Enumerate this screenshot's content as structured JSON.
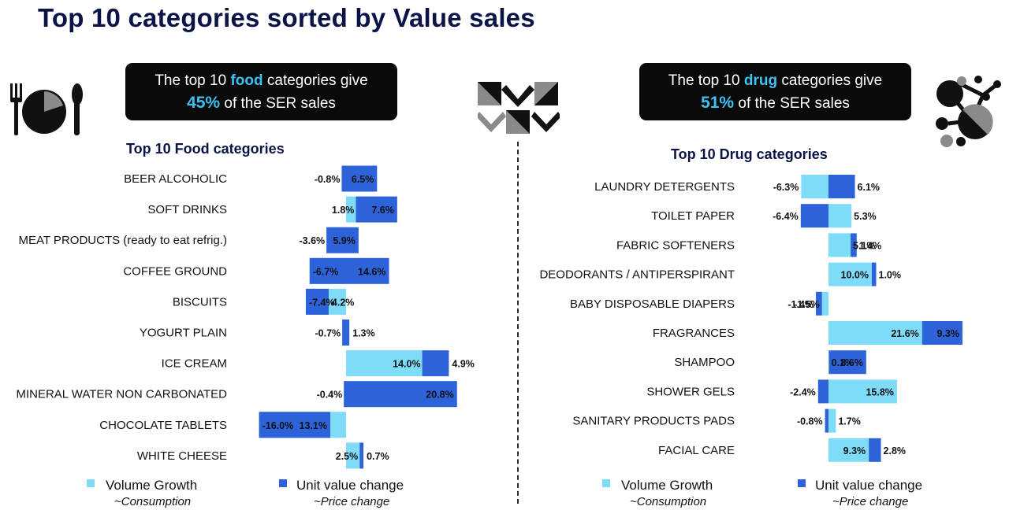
{
  "page": {
    "title": "Top 10 categories sorted by Value sales"
  },
  "callouts": {
    "food": {
      "prefix": "The top 10 ",
      "highlight": "food",
      "suffix": " categories give",
      "pct": "45%",
      "tail": " of the SER sales"
    },
    "drug": {
      "prefix": "The top 10 ",
      "highlight": "drug",
      "suffix": " categories give",
      "pct": "51%",
      "tail": " of the SER sales"
    }
  },
  "colors": {
    "volume": "#7fdcf8",
    "unit_value": "#2e62d9",
    "highlight_text": "#3ec1f2",
    "title": "#0b1447"
  },
  "icons": {
    "food": "fork-plate-knife-icon",
    "logo": "chevron-squares-logo-icon",
    "drug": "molecule-icon"
  },
  "legend": {
    "volume": {
      "label": "Volume Growth",
      "sub": "~Consumption"
    },
    "unit_value": {
      "label": "Unit value change",
      "sub": "~Price change"
    }
  },
  "chart_data": [
    {
      "type": "bar",
      "orientation": "horizontal",
      "title": "Top 10 Food categories",
      "categories": [
        "BEER ALCOHOLIC",
        "SOFT DRINKS",
        "MEAT PRODUCTS (ready to eat refrig.)",
        "COFFEE GROUND",
        "BISCUITS",
        "YOGURT PLAIN",
        "ICE CREAM",
        "MINERAL WATER NON CARBONATED",
        "CHOCOLATE TABLETS",
        "WHITE CHEESE"
      ],
      "series": [
        {
          "name": "Volume Growth",
          "values": [
            -0.8,
            1.8,
            -3.6,
            -6.7,
            -7.4,
            -0.7,
            14.0,
            -0.4,
            -16.0,
            2.5
          ]
        },
        {
          "name": "Unit value change",
          "values": [
            6.5,
            7.6,
            5.9,
            14.6,
            4.2,
            1.3,
            4.9,
            20.8,
            13.1,
            0.7
          ]
        }
      ],
      "value_labels": [
        [
          "-0.8%",
          "1.8%",
          "-3.6%",
          "-6.7%",
          "-7.4%",
          "-0.7%",
          "14.0%",
          "-0.4%",
          "-16.0%",
          "2.5%"
        ],
        [
          "6.5%",
          "7.6%",
          "5.9%",
          "14.6%",
          "4.2%",
          "1.3%",
          "4.9%",
          "20.8%",
          "13.1%",
          "0.7%"
        ]
      ],
      "units": "%",
      "stacking": "unit value stacked after volume growth end"
    },
    {
      "type": "bar",
      "orientation": "horizontal",
      "title": "Top 10 Drug categories",
      "categories": [
        "LAUNDRY DETERGENTS",
        "TOILET PAPER",
        "FABRIC SOFTENERS",
        "DEODORANTS / ANTIPERSPIRANT",
        "BABY DISPOSABLE DIAPERS",
        "FRAGRANCES",
        "SHAMPOO",
        "SHOWER GELS",
        "SANITARY PRODUCTS PADS",
        "FACIAL CARE"
      ],
      "series": [
        {
          "name": "Volume Growth",
          "values": [
            -6.3,
            5.3,
            5.1,
            10.0,
            -1.5,
            21.6,
            0.1,
            15.8,
            1.7,
            9.3
          ]
        },
        {
          "name": "Unit value change",
          "values": [
            6.1,
            -6.4,
            1.4,
            1.0,
            -1.4,
            9.3,
            8.6,
            -2.4,
            -0.8,
            2.8
          ]
        }
      ],
      "value_labels": [
        [
          "-6.3%",
          "5.3%",
          "5.1%",
          "10.0%",
          "-1.5%",
          "21.6%",
          "0.1%",
          "15.8%",
          "1.7%",
          "9.3%"
        ],
        [
          "6.1%",
          "-6.4%",
          "1.4%",
          "1.0%",
          "-1.4%",
          "9.3%",
          "8.6%",
          "-2.4%",
          "-0.8%",
          "2.8%"
        ]
      ],
      "units": "%",
      "stacking": "positive and negative parts stacked from zero"
    }
  ]
}
